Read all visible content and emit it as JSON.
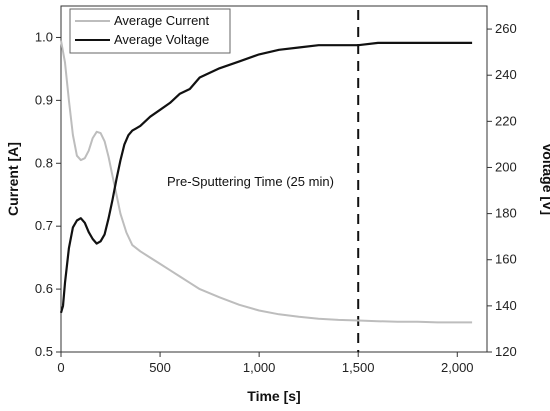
{
  "chart_data": {
    "type": "line",
    "xlabel": "Time [s]",
    "ylabel_left": "Current [A]",
    "ylabel_right": "Voltage [V]",
    "xlim": [
      0,
      2150
    ],
    "ylim_left": [
      0.5,
      1.05
    ],
    "ylim_right": [
      120,
      270
    ],
    "xticks": [
      0,
      500,
      1000,
      1500,
      2000
    ],
    "xtick_labels": [
      "0",
      "500",
      "1,000",
      "1,500",
      "2,000"
    ],
    "yticks_left": [
      0.5,
      0.6,
      0.7,
      0.8,
      0.9,
      1.0
    ],
    "ytick_labels_left": [
      "0.5",
      "0.6",
      "0.7",
      "0.8",
      "0.9",
      "1.0"
    ],
    "yticks_right": [
      120,
      140,
      160,
      180,
      200,
      220,
      240,
      260
    ],
    "ytick_labels_right": [
      "120",
      "140",
      "160",
      "180",
      "200",
      "220",
      "240",
      "260"
    ],
    "grid": false,
    "legend_position": "top-left",
    "colors": {
      "current": "#bdbdbd",
      "voltage": "#111111"
    },
    "series": [
      {
        "name": "Average Current",
        "axis": "left",
        "x": [
          0,
          20,
          40,
          60,
          80,
          100,
          120,
          140,
          160,
          180,
          200,
          220,
          240,
          260,
          280,
          300,
          330,
          360,
          400,
          450,
          500,
          550,
          600,
          650,
          700,
          800,
          900,
          1000,
          1100,
          1200,
          1300,
          1400,
          1500,
          1600,
          1700,
          1800,
          1900,
          2000,
          2075
        ],
        "values": [
          0.995,
          0.96,
          0.9,
          0.845,
          0.812,
          0.805,
          0.808,
          0.82,
          0.84,
          0.85,
          0.848,
          0.835,
          0.81,
          0.78,
          0.75,
          0.72,
          0.69,
          0.67,
          0.66,
          0.65,
          0.64,
          0.63,
          0.62,
          0.61,
          0.6,
          0.587,
          0.575,
          0.566,
          0.56,
          0.556,
          0.553,
          0.551,
          0.55,
          0.549,
          0.548,
          0.548,
          0.547,
          0.547,
          0.547
        ]
      },
      {
        "name": "Average Voltage",
        "axis": "right",
        "x": [
          0,
          10,
          20,
          40,
          60,
          80,
          100,
          120,
          140,
          160,
          180,
          200,
          220,
          240,
          260,
          280,
          300,
          320,
          340,
          360,
          380,
          400,
          450,
          500,
          550,
          600,
          650,
          700,
          750,
          800,
          900,
          1000,
          1100,
          1200,
          1300,
          1400,
          1500,
          1600,
          1700,
          1800,
          1900,
          2000,
          2075
        ],
        "values": [
          137,
          140,
          150,
          165,
          174,
          177,
          178,
          176,
          172,
          169,
          167,
          168,
          171,
          178,
          186,
          195,
          203,
          210,
          214,
          216,
          217,
          218,
          222,
          225,
          228,
          232,
          234,
          239,
          241,
          243,
          246,
          249,
          251,
          252,
          253,
          253,
          253,
          254,
          254,
          254,
          254,
          254,
          254
        ]
      }
    ],
    "annotations": [
      {
        "text": "Pre-Sputtering Time (25 min)",
        "x": 1500,
        "type": "vertical-dashed-line"
      }
    ]
  }
}
